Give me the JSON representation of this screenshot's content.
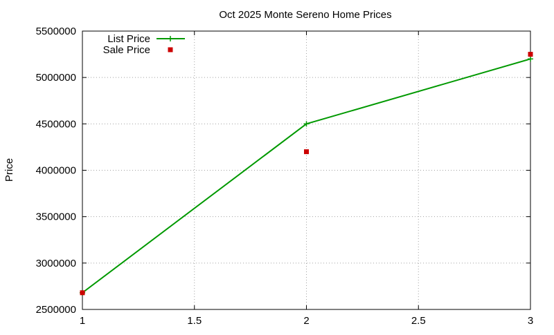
{
  "chart_data": {
    "type": "line",
    "title": "Oct 2025 Monte Sereno Home Prices",
    "xlabel": "",
    "ylabel": "Price",
    "xlim": [
      1,
      3
    ],
    "ylim": [
      2500000,
      5500000
    ],
    "x_ticks": [
      "1",
      "1.5",
      "2",
      "2.5",
      "3"
    ],
    "y_ticks": [
      "2500000",
      "3000000",
      "3500000",
      "4000000",
      "4500000",
      "5000000",
      "5500000"
    ],
    "grid": true,
    "legend_position": "top-left",
    "series": [
      {
        "name": "List Price",
        "style": "line+cross",
        "color": "#009900",
        "x": [
          1,
          2,
          3
        ],
        "values": [
          2680000,
          4500000,
          5200000
        ]
      },
      {
        "name": "Sale Price",
        "style": "square-points",
        "color": "#cc0000",
        "x": [
          1,
          2,
          3
        ],
        "values": [
          2680000,
          4200000,
          5250000
        ]
      }
    ]
  }
}
